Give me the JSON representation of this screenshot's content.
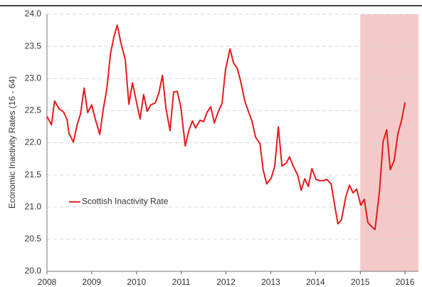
{
  "chart_data": {
    "type": "line",
    "ylabel": "Economic Inactivity Rates (16 - 64)",
    "x": [
      2008.0,
      2008.1,
      2008.17,
      2008.27,
      2008.37,
      2008.45,
      2008.49,
      2008.59,
      2008.67,
      2008.75,
      2008.83,
      2008.91,
      2009.0,
      2009.08,
      2009.18,
      2009.26,
      2009.34,
      2009.42,
      2009.5,
      2009.57,
      2009.65,
      2009.75,
      2009.83,
      2009.91,
      2009.99,
      2010.08,
      2010.16,
      2010.24,
      2010.32,
      2010.42,
      2010.5,
      2010.58,
      2010.66,
      2010.75,
      2010.83,
      2010.91,
      2010.99,
      2011.09,
      2011.17,
      2011.25,
      2011.32,
      2011.42,
      2011.5,
      2011.58,
      2011.66,
      2011.74,
      2011.83,
      2011.91,
      2011.99,
      2012.09,
      2012.17,
      2012.25,
      2012.33,
      2012.42,
      2012.5,
      2012.58,
      2012.66,
      2012.76,
      2012.83,
      2012.91,
      2013.01,
      2013.09,
      2013.17,
      2013.25,
      2013.34,
      2013.42,
      2013.5,
      2013.6,
      2013.68,
      2013.76,
      2013.84,
      2013.92,
      2014.01,
      2014.09,
      2014.17,
      2014.25,
      2014.35,
      2014.43,
      2014.5,
      2014.58,
      2014.68,
      2014.76,
      2014.84,
      2014.92,
      2015.01,
      2015.09,
      2015.17,
      2015.25,
      2015.33,
      2015.43,
      2015.51,
      2015.59,
      2015.67,
      2015.76,
      2015.84,
      2015.92,
      2016.0
    ],
    "series": [
      {
        "name": "Scottish Inactivity Rate",
        "color": "#e8191c",
        "values": [
          22.41,
          22.28,
          22.65,
          22.53,
          22.48,
          22.36,
          22.15,
          22.01,
          22.27,
          22.45,
          22.85,
          22.47,
          22.59,
          22.37,
          22.13,
          22.53,
          22.85,
          23.39,
          23.66,
          23.83,
          23.56,
          23.29,
          22.6,
          22.93,
          22.67,
          22.37,
          22.75,
          22.49,
          22.59,
          22.62,
          22.77,
          23.05,
          22.53,
          22.19,
          22.79,
          22.8,
          22.56,
          21.95,
          22.19,
          22.34,
          22.23,
          22.35,
          22.33,
          22.48,
          22.56,
          22.31,
          22.49,
          22.61,
          23.14,
          23.46,
          23.24,
          23.16,
          22.95,
          22.65,
          22.49,
          22.34,
          22.09,
          21.98,
          21.58,
          21.36,
          21.45,
          21.64,
          22.25,
          21.64,
          21.68,
          21.78,
          21.64,
          21.5,
          21.26,
          21.44,
          21.32,
          21.6,
          21.43,
          21.41,
          21.41,
          21.43,
          21.36,
          21.02,
          20.74,
          20.8,
          21.17,
          21.34,
          21.22,
          21.28,
          21.03,
          21.12,
          20.76,
          20.7,
          20.65,
          21.25,
          22.02,
          22.2,
          21.58,
          21.73,
          22.14,
          22.34,
          22.63
        ]
      }
    ],
    "xlim": [
      2008,
      2016.3
    ],
    "xticks": [
      2008,
      2009,
      2010,
      2011,
      2012,
      2013,
      2014,
      2015,
      2016
    ],
    "ylim": [
      20.0,
      24.0
    ],
    "yticks": [
      {
        "value": 20.0,
        "label": "20.0"
      },
      {
        "value": 20.5,
        "label": "20.5"
      },
      {
        "value": 21.0,
        "label": "21.0"
      },
      {
        "value": 21.5,
        "label": "21.5"
      },
      {
        "value": 22.0,
        "label": "22.0"
      },
      {
        "value": 22.5,
        "label": "22.5"
      },
      {
        "value": 23.0,
        "label": "23.0"
      },
      {
        "value": 23.5,
        "label": "23.5"
      },
      {
        "value": 24.0,
        "label": "24.0"
      }
    ],
    "grid": true,
    "legend": "center left",
    "shaded_region": {
      "x": [
        2015,
        2016.3
      ],
      "color": "#f2c4c3"
    }
  }
}
